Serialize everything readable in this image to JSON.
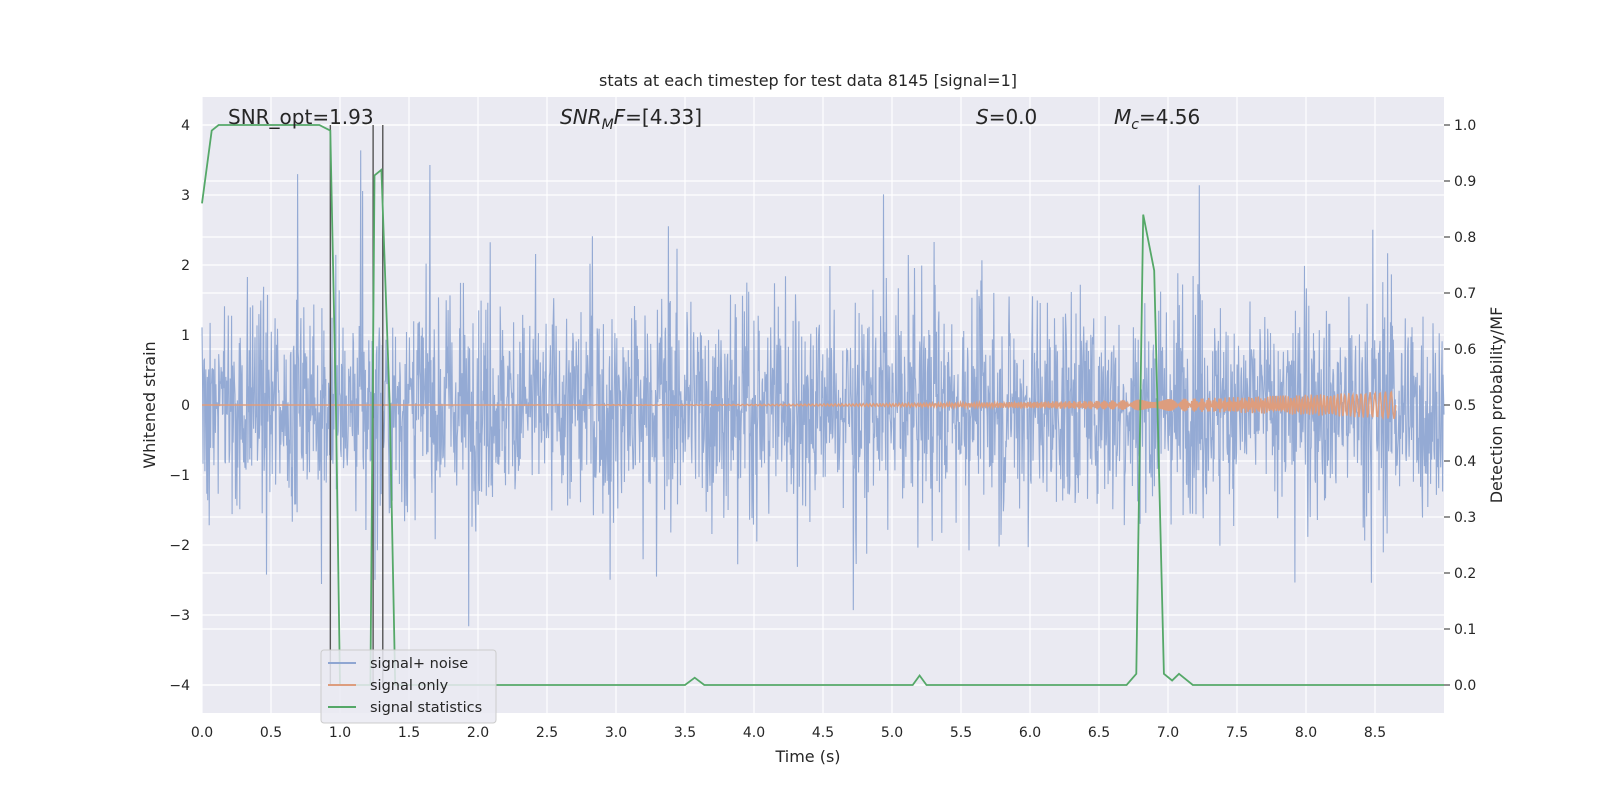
{
  "chart_data": {
    "type": "line",
    "title": "stats at each timestep for test data 8145 [signal=1]",
    "xlabel": "Time (s)",
    "ylabel_left": "Whitened strain",
    "ylabel_right": "Detection probability/MF",
    "xlim": [
      0.0,
      9.0
    ],
    "ylim_left": [
      -4.4,
      4.4
    ],
    "ylim_right": [
      -0.05,
      1.05
    ],
    "xticks": [
      "0.0",
      "0.5",
      "1.0",
      "1.5",
      "2.0",
      "2.5",
      "3.0",
      "3.5",
      "4.0",
      "4.5",
      "5.0",
      "5.5",
      "6.0",
      "6.5",
      "7.0",
      "7.5",
      "8.0",
      "8.5"
    ],
    "yticks_left": [
      "4",
      "3",
      "2",
      "1",
      "0",
      "−1",
      "−2",
      "−3",
      "−4"
    ],
    "yticks_right": [
      "1.0",
      "0.9",
      "0.8",
      "0.7",
      "0.6",
      "0.5",
      "0.4",
      "0.3",
      "0.2",
      "0.1",
      "0.0"
    ],
    "grid": true,
    "legend_position": "lower-left",
    "annotations": {
      "snr_opt": {
        "lead": "SNR_opt",
        "value": "=1.93"
      },
      "snr_mf": {
        "base": "SNR",
        "sub": "M",
        "rest": "F",
        "value": "=[4.33]"
      },
      "s": {
        "sym": "S",
        "value": "=0.0"
      },
      "mc": {
        "base": "M",
        "sub": "c",
        "value": "=4.56"
      }
    },
    "series": [
      {
        "name": "signal+ noise",
        "color": "#8fa6d2",
        "description_values": {
          "typical_abs_envelope": 1.6,
          "max": 4.0,
          "min": -4.0
        }
      },
      {
        "name": "signal only",
        "color": "#dd9d7e",
        "chirp_amplitude_end": 0.2,
        "chirp_end_time": 8.65
      },
      {
        "name": "signal statistics",
        "color": "#55a868",
        "x": [
          0.0,
          0.07,
          0.12,
          0.5,
          0.85,
          0.93,
          0.97,
          1.0,
          1.22,
          1.25,
          1.3,
          1.36,
          1.4,
          3.5,
          3.57,
          3.64,
          5.15,
          5.2,
          5.25,
          6.7,
          6.77,
          6.82,
          6.9,
          6.97,
          7.03,
          7.08,
          7.18,
          8.0,
          9.0
        ],
        "y": [
          0.86,
          0.99,
          1.0,
          1.0,
          1.0,
          0.99,
          0.5,
          0.0,
          0.0,
          0.91,
          0.92,
          0.5,
          0.0,
          0.0,
          0.013,
          0.0,
          0.0,
          0.017,
          0.0,
          0.0,
          0.02,
          0.84,
          0.74,
          0.02,
          0.008,
          0.02,
          0.0,
          0.0,
          0.0
        ]
      }
    ],
    "vertical_lines_x": [
      0.93,
      1.24,
      1.31
    ]
  }
}
